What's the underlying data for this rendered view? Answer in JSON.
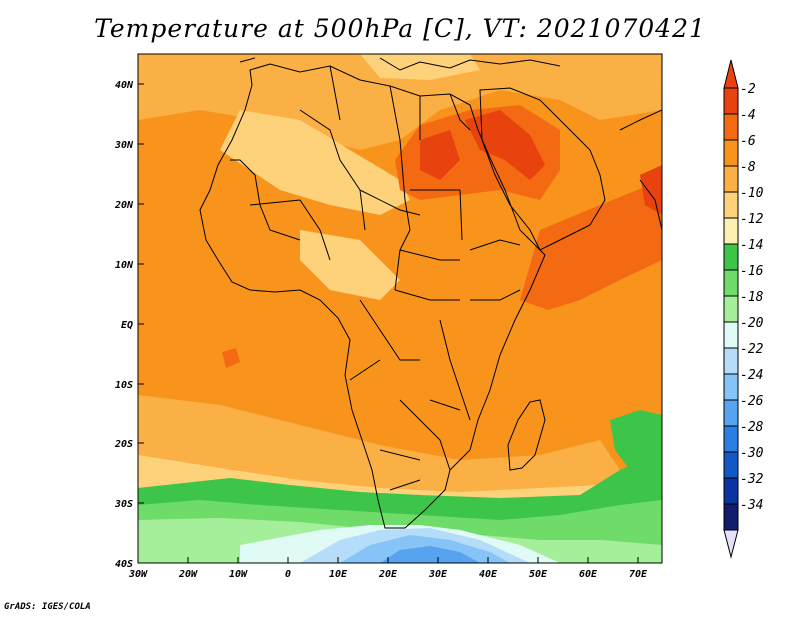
{
  "title": "Temperature at 500hPa [C], VT: 2021070421",
  "credit": "GrADS: IGES/COLA",
  "map": {
    "lon_ticks": [
      "30W",
      "20W",
      "10W",
      "0",
      "10E",
      "20E",
      "30E",
      "40E",
      "50E",
      "60E",
      "70E"
    ],
    "lat_ticks": [
      "40N",
      "30N",
      "20N",
      "10N",
      "EQ",
      "10S",
      "20S",
      "30S",
      "40S"
    ],
    "lon_range": [
      -30,
      75
    ],
    "lat_range": [
      -40,
      45
    ],
    "variable": "temperature",
    "units": "C",
    "level": "500hPa"
  },
  "colorbar": {
    "labels": [
      "-2",
      "-4",
      "-6",
      "-8",
      "-10",
      "-12",
      "-14",
      "-16",
      "-18",
      "-20",
      "-22",
      "-24",
      "-26",
      "-28",
      "-30",
      "-32",
      "-34"
    ],
    "colors": [
      "#e8420f",
      "#f36a12",
      "#f8941c",
      "#fbb046",
      "#fdd27a",
      "#fef0b0",
      "#3cc548",
      "#6fdc6a",
      "#a6ef9a",
      "#e0fbf6",
      "#b5ddf9",
      "#86c3f6",
      "#56a4ef",
      "#2b7ee3",
      "#1259c7",
      "#0a35a0",
      "#111e6e"
    ],
    "over_color": "#e8420f",
    "under_color": "#e6e0fc"
  }
}
